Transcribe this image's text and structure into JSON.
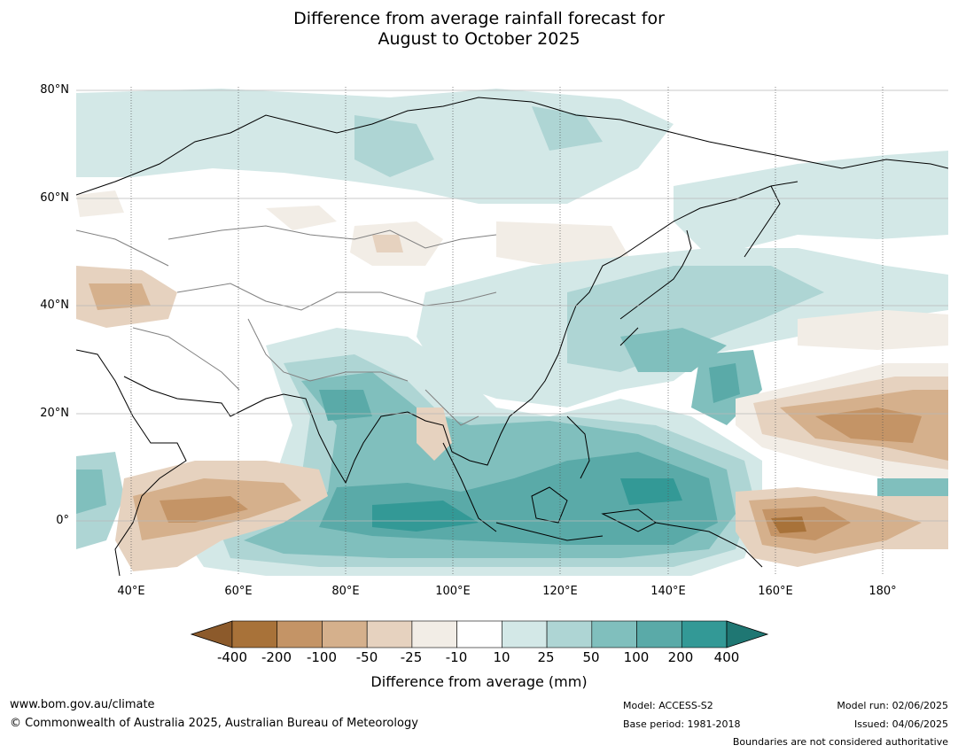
{
  "title": {
    "line1": "Difference from average rainfall forecast for",
    "line2": "August to October 2025"
  },
  "map": {
    "lat_labels": [
      "80°N",
      "60°N",
      "40°N",
      "20°N",
      "0°"
    ],
    "lon_labels": [
      "40°E",
      "60°E",
      "80°E",
      "100°E",
      "120°E",
      "140°E",
      "160°E",
      "180°"
    ],
    "extent": {
      "lon": [
        30,
        192
      ],
      "lat": [
        -10,
        81
      ]
    }
  },
  "colorbar": {
    "label": "Difference from average (mm)",
    "ticks": [
      "-400",
      "-200",
      "-100",
      "-50",
      "-25",
      "-10",
      "10",
      "25",
      "50",
      "100",
      "200",
      "400"
    ],
    "colors": {
      "under": "#8c5a2b",
      "bins": [
        "#a87239",
        "#c49466",
        "#d5b08c",
        "#e6d2bf",
        "#f2ede6",
        "#ffffff",
        "#d3e8e7",
        "#aed5d4",
        "#80bfbd",
        "#5aaaa8",
        "#339996"
      ],
      "over": "#1f7773"
    }
  },
  "footer": {
    "website": "www.bom.gov.au/climate",
    "copyright": "© Commonwealth of Australia 2025, Australian Bureau of Meteorology",
    "model": "Model: ACCESS-S2",
    "base_period": "Base period: 1981-2018",
    "model_run": "Model run: 02/06/2025",
    "issued": "Issued: 04/06/2025",
    "disclaimer": "Boundaries are not considered authoritative"
  }
}
